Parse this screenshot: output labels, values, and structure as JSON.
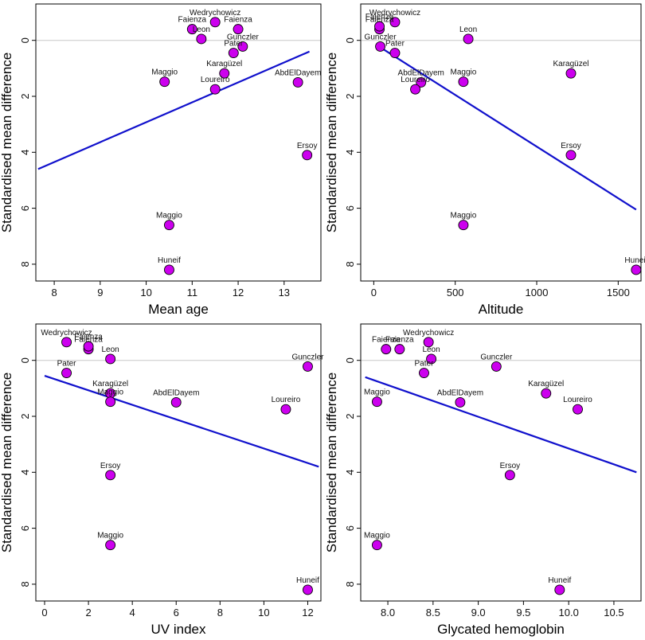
{
  "colors": {
    "point": "#cc00ee",
    "line": "#1010cc",
    "zero": "#c8c8c8"
  },
  "chart_data": [
    {
      "type": "scatter",
      "title": "",
      "xlabel": "Mean age",
      "ylabel": "Standardised mean difference",
      "xlim": [
        7.6,
        13.8
      ],
      "ylim": [
        -1.3,
        8.6
      ],
      "y_inverted": true,
      "xticks": [
        8,
        9,
        10,
        11,
        12,
        13
      ],
      "yticks": [
        0,
        2,
        4,
        6,
        8
      ],
      "points": [
        {
          "label": "Wedrychowicz",
          "x": 11.5,
          "y": -0.65
        },
        {
          "label": "Faienza",
          "x": 11.0,
          "y": -0.4
        },
        {
          "label": "Faienza",
          "x": 12.0,
          "y": -0.4
        },
        {
          "label": "Leon",
          "x": 11.2,
          "y": -0.05
        },
        {
          "label": "Gunczler",
          "x": 12.1,
          "y": 0.22
        },
        {
          "label": "Pater",
          "x": 11.9,
          "y": 0.45
        },
        {
          "label": "Karagüzel",
          "x": 11.7,
          "y": 1.18
        },
        {
          "label": "Maggio",
          "x": 10.4,
          "y": 1.48
        },
        {
          "label": "AbdElDayem",
          "x": 13.3,
          "y": 1.5
        },
        {
          "label": "Loureiro",
          "x": 11.5,
          "y": 1.75
        },
        {
          "label": "Ersoy",
          "x": 13.5,
          "y": 4.1
        },
        {
          "label": "Maggio",
          "x": 10.5,
          "y": 6.6
        },
        {
          "label": "Huneif",
          "x": 10.5,
          "y": 8.2
        }
      ],
      "fit_line": {
        "x": [
          7.65,
          13.55
        ],
        "y": [
          4.6,
          0.4
        ]
      }
    },
    {
      "type": "scatter",
      "title": "",
      "xlabel": "Altitude",
      "ylabel": "Standardised mean difference",
      "xlim": [
        -80,
        1640
      ],
      "ylim": [
        -1.3,
        8.6
      ],
      "y_inverted": true,
      "xticks": [
        0,
        500,
        1000,
        1500
      ],
      "yticks": [
        0,
        2,
        4,
        6,
        8
      ],
      "points": [
        {
          "label": "Wedrychowicz",
          "x": 130,
          "y": -0.65
        },
        {
          "label": "Faienza",
          "x": 35,
          "y": -0.4
        },
        {
          "label": "Faienza",
          "x": 35,
          "y": -0.5
        },
        {
          "label": "Leon",
          "x": 580,
          "y": -0.05
        },
        {
          "label": "Gunczler",
          "x": 40,
          "y": 0.22
        },
        {
          "label": "Pater",
          "x": 130,
          "y": 0.45
        },
        {
          "label": "AbdElDayem",
          "x": 290,
          "y": 1.5
        },
        {
          "label": "Maggio",
          "x": 550,
          "y": 1.48
        },
        {
          "label": "Loureiro",
          "x": 255,
          "y": 1.75
        },
        {
          "label": "Karagüzel",
          "x": 1210,
          "y": 1.18
        },
        {
          "label": "Ersoy",
          "x": 1210,
          "y": 4.1
        },
        {
          "label": "Maggio",
          "x": 550,
          "y": 6.6
        },
        {
          "label": "Huneif",
          "x": 1610,
          "y": 8.2
        }
      ],
      "fit_line": {
        "x": [
          40,
          1610
        ],
        "y": [
          0.25,
          6.05
        ]
      }
    },
    {
      "type": "scatter",
      "title": "",
      "xlabel": "UV index",
      "ylabel": "Standardised mean difference",
      "xlim": [
        -0.4,
        12.6
      ],
      "ylim": [
        -1.3,
        8.6
      ],
      "y_inverted": true,
      "xticks": [
        0,
        2,
        4,
        6,
        8,
        10,
        12
      ],
      "yticks": [
        0,
        2,
        4,
        6,
        8
      ],
      "points": [
        {
          "label": "Wedrychowicz",
          "x": 1.0,
          "y": -0.65
        },
        {
          "label": "Faienza",
          "x": 2.0,
          "y": -0.4
        },
        {
          "label": "Faienza",
          "x": 2.0,
          "y": -0.5
        },
        {
          "label": "Leon",
          "x": 3.0,
          "y": -0.05
        },
        {
          "label": "Pater",
          "x": 1.0,
          "y": 0.45
        },
        {
          "label": "Karagüzel",
          "x": 3.0,
          "y": 1.18
        },
        {
          "label": "Maggio",
          "x": 3.0,
          "y": 1.48
        },
        {
          "label": "AbdElDayem",
          "x": 6.0,
          "y": 1.5
        },
        {
          "label": "Gunczler",
          "x": 12.0,
          "y": 0.22
        },
        {
          "label": "Loureiro",
          "x": 11.0,
          "y": 1.75
        },
        {
          "label": "Ersoy",
          "x": 3.0,
          "y": 4.1
        },
        {
          "label": "Maggio",
          "x": 3.0,
          "y": 6.6
        },
        {
          "label": "Huneif",
          "x": 12.0,
          "y": 8.2
        }
      ],
      "fit_line": {
        "x": [
          0.0,
          12.5
        ],
        "y": [
          0.55,
          3.8
        ]
      }
    },
    {
      "type": "scatter",
      "title": "",
      "xlabel": "Glycated hemoglobin",
      "ylabel": "Standardised mean difference",
      "xlim": [
        7.7,
        10.8
      ],
      "ylim": [
        -1.3,
        8.6
      ],
      "y_inverted": true,
      "xticks": [
        8.0,
        8.5,
        9.0,
        9.5,
        10.0,
        10.5
      ],
      "tick_format": "1dp",
      "yticks": [
        0,
        2,
        4,
        6,
        8
      ],
      "points": [
        {
          "label": "Faienza",
          "x": 7.98,
          "y": -0.4
        },
        {
          "label": "Faienza",
          "x": 8.13,
          "y": -0.4
        },
        {
          "label": "Wedrychowicz",
          "x": 8.45,
          "y": -0.65
        },
        {
          "label": "Leon",
          "x": 8.48,
          "y": -0.05
        },
        {
          "label": "Pater",
          "x": 8.4,
          "y": 0.45
        },
        {
          "label": "Gunczler",
          "x": 9.2,
          "y": 0.22
        },
        {
          "label": "Karagüzel",
          "x": 9.75,
          "y": 1.18
        },
        {
          "label": "Maggio",
          "x": 7.88,
          "y": 1.48
        },
        {
          "label": "AbdElDayem",
          "x": 8.8,
          "y": 1.5
        },
        {
          "label": "Loureiro",
          "x": 10.1,
          "y": 1.75
        },
        {
          "label": "Ersoy",
          "x": 9.35,
          "y": 4.1
        },
        {
          "label": "Maggio",
          "x": 7.88,
          "y": 6.6
        },
        {
          "label": "Huneif",
          "x": 9.9,
          "y": 8.2
        }
      ],
      "fit_line": {
        "x": [
          7.75,
          10.75
        ],
        "y": [
          0.6,
          4.0
        ]
      }
    }
  ]
}
